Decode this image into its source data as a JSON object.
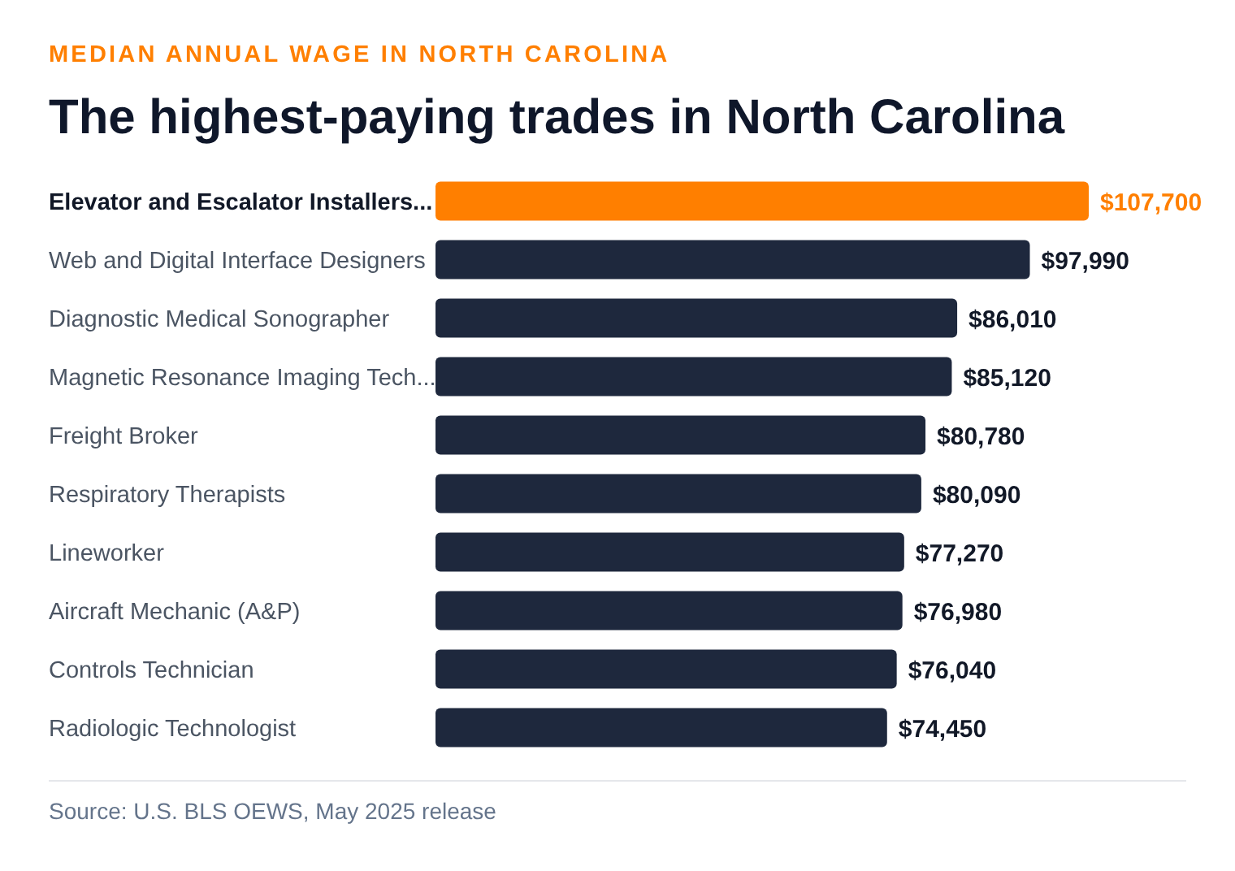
{
  "chart_data": {
    "type": "bar",
    "orientation": "horizontal",
    "tick_labels": "y",
    "subtitle": "MEDIAN ANNUAL WAGE IN NORTH CAROLINA",
    "title": "The highest-paying trades in North Carolina",
    "categories": [
      "Elevator and Escalator Installers...",
      "Web and Digital Interface Designers",
      "Diagnostic Medical Sonographer",
      "Magnetic Resonance Imaging Tech...",
      "Freight Broker",
      "Respiratory Therapists",
      "Lineworker",
      "Aircraft Mechanic (A&P)",
      "Controls Technician",
      "Radiologic Technologist"
    ],
    "values": [
      107700,
      97990,
      86010,
      85120,
      80780,
      80090,
      77270,
      76980,
      76040,
      74450
    ],
    "value_labels": [
      "$107,700",
      "$97,990",
      "$86,010",
      "$85,120",
      "$80,780",
      "$80,090",
      "$77,270",
      "$76,980",
      "$76,040",
      "$74,450"
    ],
    "colors": [
      "#ff7f00",
      "#1e283d",
      "#1e283d",
      "#1e283d",
      "#1e283d",
      "#1e283d",
      "#1e283d",
      "#1e283d",
      "#1e283d",
      "#1e283d"
    ],
    "annotations": [
      "Source: U.S. BLS OEWS, May 2025 release"
    ],
    "grid": false,
    "legend": false
  }
}
